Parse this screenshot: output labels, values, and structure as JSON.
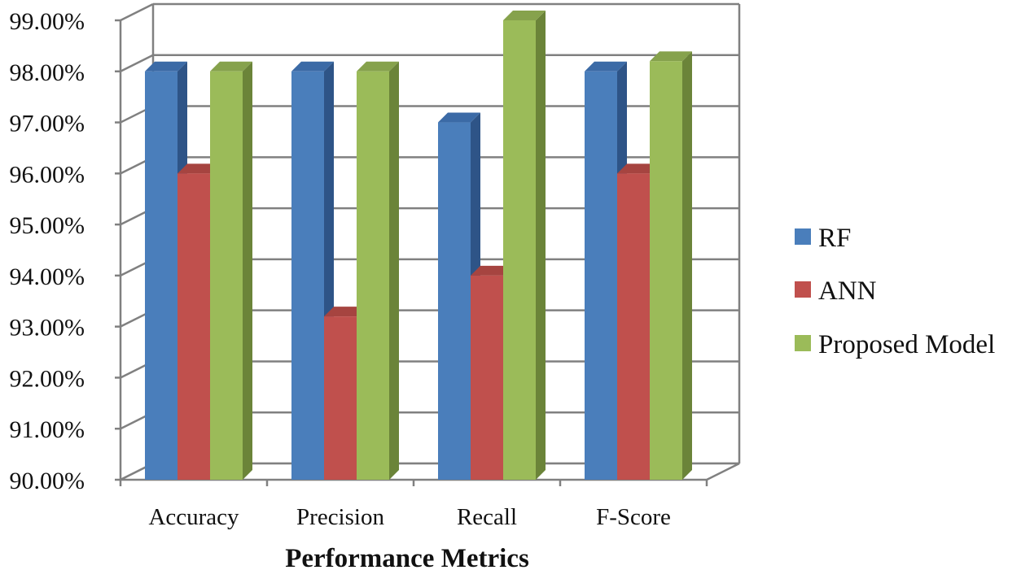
{
  "chart_data": {
    "type": "bar",
    "style": "3d-clustered-column",
    "title": "",
    "xlabel": "Performance Metrics",
    "ylabel": "",
    "categories": [
      "Accuracy",
      "Precision",
      "Recall",
      "F-Score"
    ],
    "series": [
      {
        "name": "RF",
        "color": "#4A7EBB",
        "side_color": "#2E5487",
        "top_color": "#3B6AA6",
        "values": [
          0.98,
          0.98,
          0.97,
          0.98
        ]
      },
      {
        "name": "ANN",
        "color": "#C0504D",
        "side_color": "#8E3735",
        "top_color": "#A64440",
        "values": [
          0.96,
          0.932,
          0.94,
          0.96
        ]
      },
      {
        "name": "Proposed Model",
        "color": "#9BBB59",
        "side_color": "#6B8439",
        "top_color": "#86A24C",
        "values": [
          0.98,
          0.98,
          0.99,
          0.982
        ]
      }
    ],
    "ylim": [
      0.9,
      0.99
    ],
    "yticks": [
      0.9,
      0.91,
      0.92,
      0.93,
      0.94,
      0.95,
      0.96,
      0.97,
      0.98,
      0.99
    ],
    "ytick_labels": [
      "90.00%",
      "91.00%",
      "92.00%",
      "93.00%",
      "94.00%",
      "95.00%",
      "96.00%",
      "97.00%",
      "98.00%",
      "99.00%"
    ],
    "grid": true,
    "legend_position": "right"
  }
}
